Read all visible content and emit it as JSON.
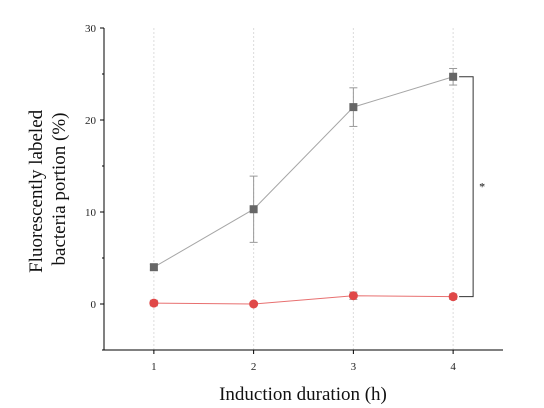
{
  "chart_data": {
    "type": "line",
    "title": "",
    "xlabel": "Induction duration (h)",
    "ylabel": [
      "Fluorescently labeled",
      "bacteria portion (%)"
    ],
    "x": [
      1,
      2,
      3,
      4
    ],
    "xlim": [
      0.5,
      4.5
    ],
    "ylim": [
      -5,
      30
    ],
    "xticks": [
      "1",
      "2",
      "3",
      "4"
    ],
    "yticks": [
      "0",
      "10",
      "20",
      "30"
    ],
    "grid": "vertical dotted",
    "legend": "none",
    "series": [
      {
        "marker": "square",
        "color": "#666666",
        "line_color": "#a6a6a6",
        "values": [
          4.0,
          10.3,
          21.4,
          24.7
        ],
        "errors": [
          0.3,
          3.6,
          2.1,
          0.9
        ]
      },
      {
        "marker": "circle",
        "color": "#e04848",
        "line_color": "#e87070",
        "values": [
          0.1,
          0.0,
          0.9,
          0.8
        ],
        "errors": [
          0.3,
          0.2,
          0.4,
          0.3
        ]
      }
    ],
    "annotations": [
      {
        "text": "*",
        "bracket_between_series_at_x": 4
      }
    ]
  }
}
